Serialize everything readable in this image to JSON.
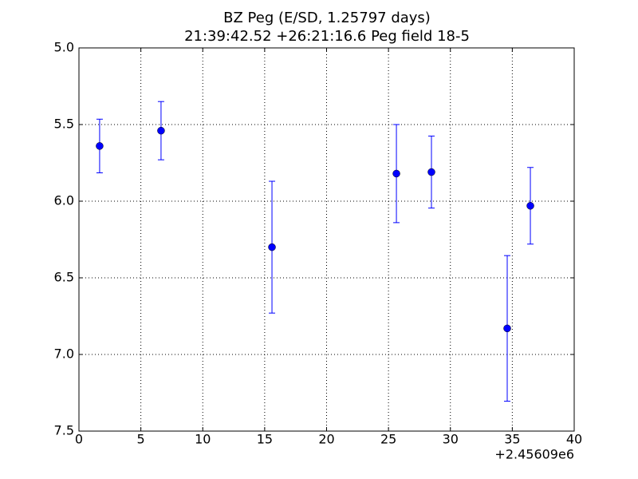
{
  "chart_data": {
    "type": "errorbar_scatter",
    "title": "BZ Peg (E/SD, 1.25797 days)",
    "subtitle": "21:39:42.52 +26:21:16.6 Peg field 18-5",
    "x_offset_label": "+2.45609e6",
    "series": [
      {
        "color": "#0000ff",
        "x": [
          1.67,
          6.63,
          15.59,
          25.64,
          28.47,
          34.59,
          36.46
        ],
        "values": [
          5.64,
          5.54,
          6.3,
          5.82,
          5.81,
          6.83,
          6.03
        ],
        "errors": [
          0.175,
          0.19,
          0.43,
          0.32,
          0.235,
          0.475,
          0.25
        ]
      }
    ],
    "xlim": [
      0,
      40
    ],
    "xticks": [
      0,
      5,
      10,
      15,
      20,
      25,
      30,
      35,
      40
    ],
    "ylim": [
      5.0,
      7.5
    ],
    "invert_y": true,
    "yticks": [
      {
        "value": 5.0,
        "label": "5.0"
      },
      5.5,
      {
        "value": 6.0,
        "label": "6.0"
      },
      6.5,
      {
        "value": 7.0,
        "label": "7.0"
      },
      7.5
    ],
    "grid": true
  }
}
